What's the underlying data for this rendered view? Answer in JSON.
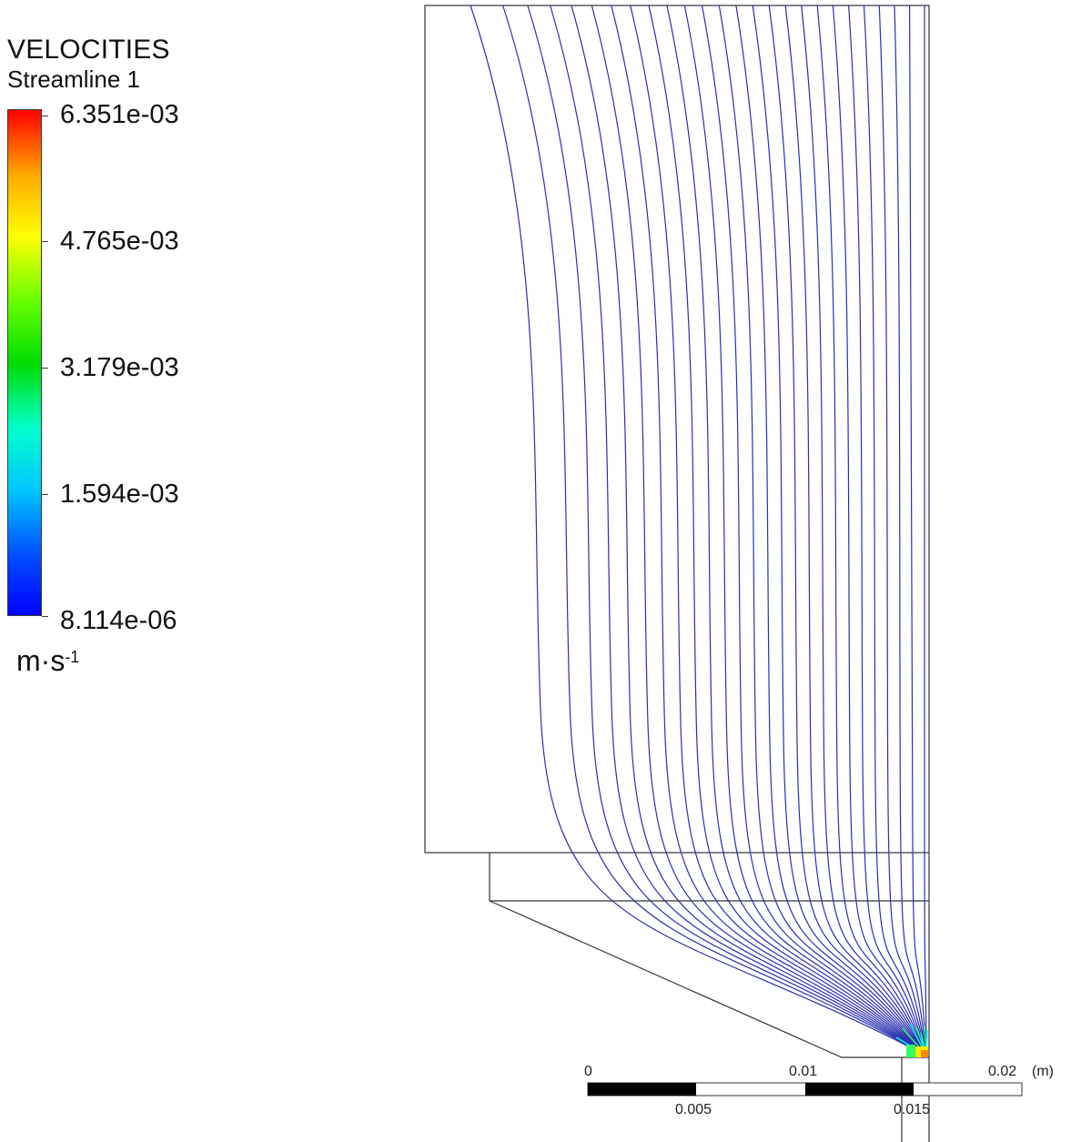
{
  "legend": {
    "title": "VELOCITIES",
    "subtitle": "Streamline 1",
    "ticks": [
      "6.351e-03",
      "4.765e-03",
      "3.179e-03",
      "1.594e-03",
      "8.114e-06"
    ],
    "unit_base": "m·s",
    "unit_exp": "-1",
    "colors": [
      "#ff0000",
      "#ffaa00",
      "#ffff00",
      "#66ff00",
      "#00dd00",
      "#00ffcc",
      "#00c8ff",
      "#0050ff",
      "#0000ff"
    ]
  },
  "scale_bar": {
    "top_labels": [
      "0",
      "0.01",
      "0.02"
    ],
    "bottom_labels": [
      "0.005",
      "0.015"
    ],
    "unit": "(m)"
  },
  "streamlines": {
    "line_color": "#2a2fb0",
    "count": 26,
    "highlight_colors": [
      "#00ffff",
      "#33ff66",
      "#ffee00",
      "#ff8800"
    ]
  }
}
